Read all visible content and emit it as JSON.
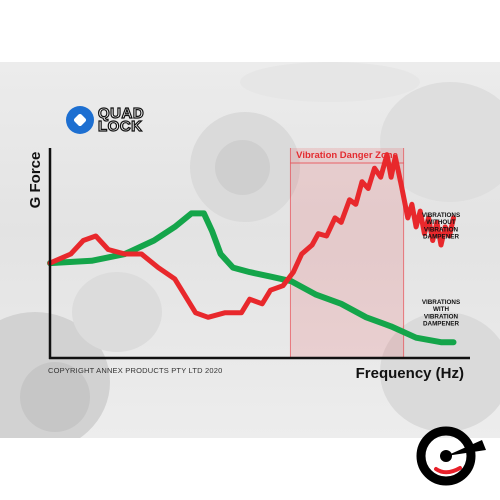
{
  "brand": {
    "logo_line1": "QUAD",
    "logo_line2": "LOCK"
  },
  "copyright": "COPYRIGHT ANNEX PRODUCTS PTY LTD 2020",
  "chart_data": {
    "type": "line",
    "xlabel": "Frequency (Hz)",
    "ylabel": "G Force",
    "xlim": [
      0,
      100
    ],
    "ylim": [
      0,
      100
    ],
    "grid": false,
    "zone": {
      "label": "Vibration Danger Zone",
      "x_start": 57.8,
      "x_end": 85.0,
      "color": "#e8323a"
    },
    "series": [
      {
        "name": "VIBRATIONS WITHOUT VIBRATION DAMPENER",
        "label_lines": [
          "VIBRATIONS",
          "WITHOUT",
          "VIBRATION",
          "DAMPENER"
        ],
        "color": "#e8282c",
        "x": [
          0,
          5,
          8,
          11,
          14,
          18,
          22,
          26,
          30,
          35,
          38,
          42,
          46,
          48,
          51,
          53,
          56,
          58.5,
          60.5,
          63,
          64.5,
          66.5,
          68.5,
          70,
          72,
          73.5,
          75,
          76.5,
          78,
          79.5,
          81,
          82,
          83,
          84.5,
          86,
          87,
          88,
          89,
          90,
          91,
          92,
          93,
          94,
          95,
          96,
          97
        ],
        "y": [
          42,
          46,
          52,
          54,
          48,
          46,
          46,
          40,
          35,
          20,
          18,
          20,
          20,
          26,
          24,
          30,
          32,
          38,
          46,
          50,
          55,
          54,
          62,
          60,
          70,
          68,
          78,
          75,
          84,
          80,
          90,
          80,
          89,
          76,
          62,
          68,
          58,
          65,
          55,
          62,
          52,
          60,
          50,
          58,
          54,
          62
        ]
      },
      {
        "name": "VIBRATIONS WITH VIBRATION DAMPENER",
        "label_lines": [
          "VIBRATIONS",
          "WITH",
          "VIBRATION",
          "DAMPENER"
        ],
        "color": "#14a54a",
        "x": [
          0,
          10,
          18,
          25,
          30,
          34,
          37,
          39,
          41,
          44,
          48,
          53,
          58,
          64,
          70,
          76,
          82,
          88,
          94,
          97
        ],
        "y": [
          42,
          43,
          46,
          52,
          58,
          64,
          64,
          56,
          46,
          40,
          38,
          36,
          34,
          28,
          24,
          18,
          14,
          9,
          7,
          7
        ]
      }
    ]
  },
  "corner_brand_colors": {
    "primary": "#000000",
    "accent": "#e8202a"
  }
}
